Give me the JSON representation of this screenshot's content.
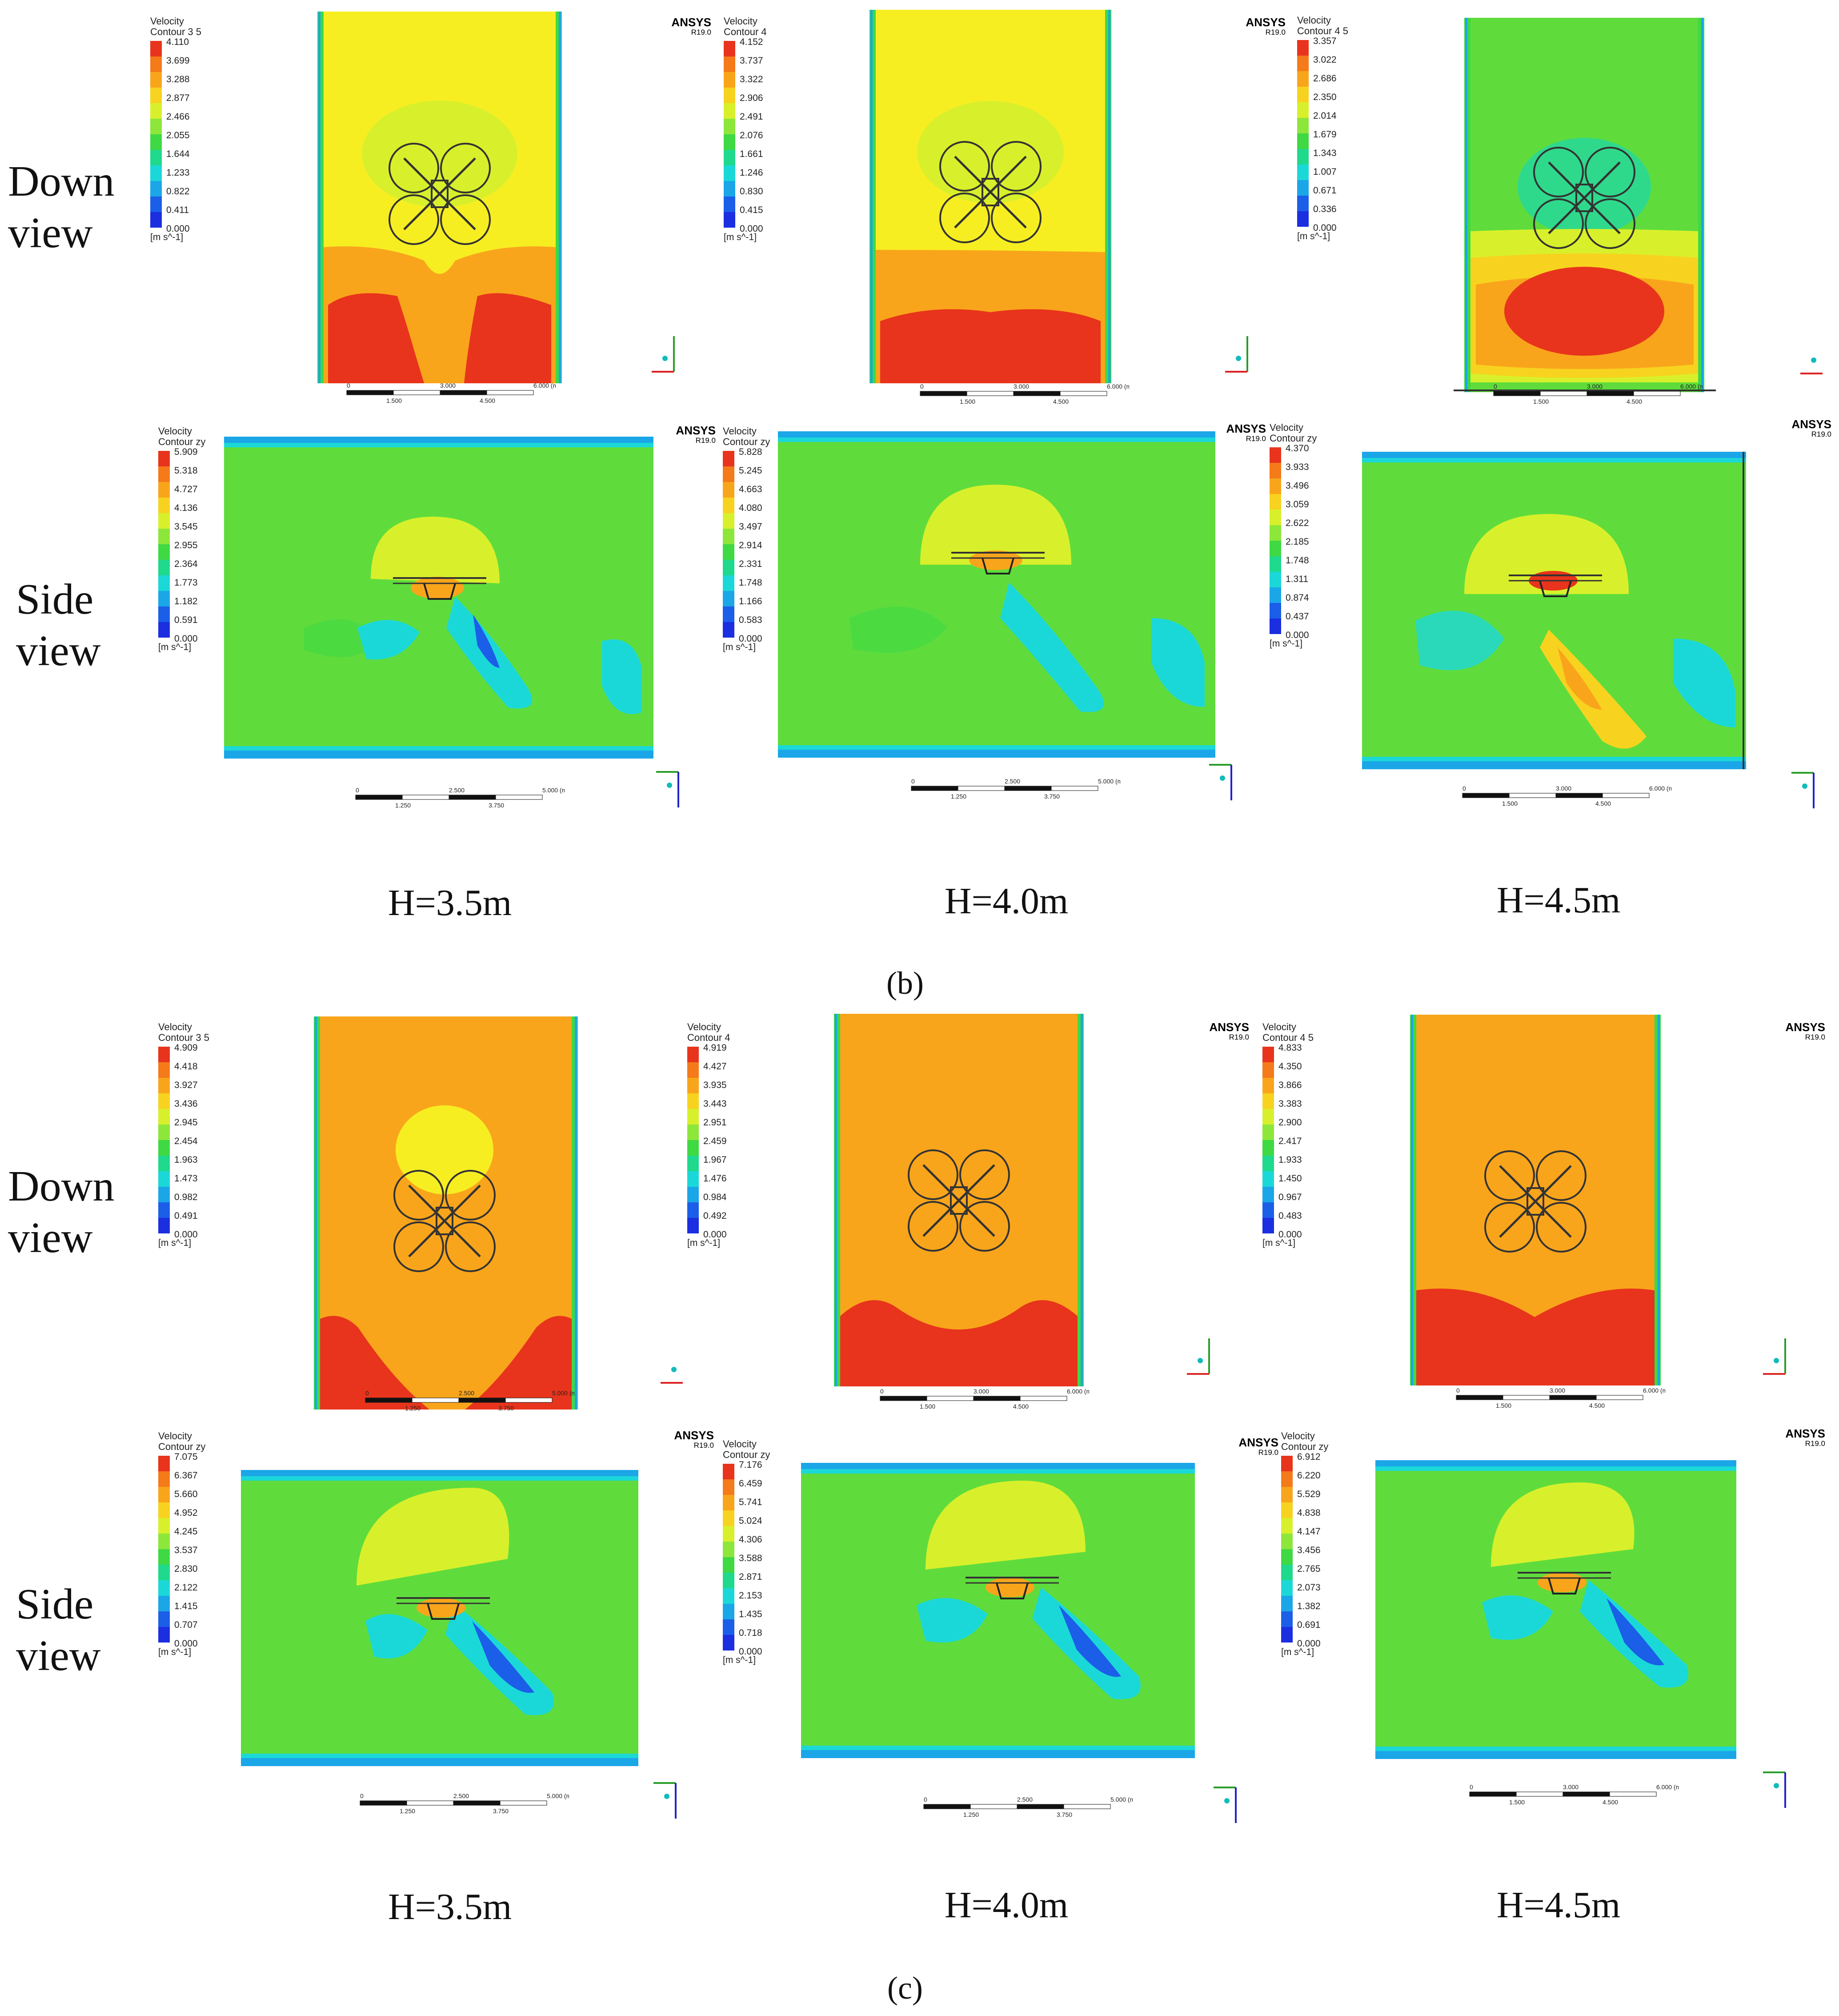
{
  "row_labels": {
    "down_1": "Down",
    "down_2": "view",
    "side_1": "Side",
    "side_2": "view"
  },
  "ansys": {
    "brand": "ANSYS",
    "version": "R19.0"
  },
  "legend_unit": "[m s^-1]",
  "heights": [
    "H=3.5m",
    "H=4.0m",
    "H=4.5m"
  ],
  "sublabels": {
    "b": "(b)",
    "c": "(c)"
  },
  "legend_colors": [
    "#e8341c",
    "#f47a1a",
    "#f9a51b",
    "#f7d31f",
    "#d8f02b",
    "#8de63a",
    "#3fd944",
    "#1fd98c",
    "#1bd8d8",
    "#1ba6e8",
    "#1b5ee8",
    "#1b2ee0"
  ],
  "scale": {
    "down_ticks_top": [
      "0",
      "3.000",
      "6.000 (m)"
    ],
    "down_ticks_bottom": [
      "1.500",
      "4.500"
    ],
    "side_ticks_top": [
      "0",
      "2.500",
      "5.000 (m)"
    ],
    "side_ticks_bottom": [
      "1.250",
      "3.750"
    ],
    "side45_ticks_top": [
      "0",
      "3.000",
      "6.000 (m)"
    ],
    "side45_ticks_bottom": [
      "1.500",
      "4.500"
    ]
  },
  "legends": {
    "b_down_35": {
      "title1": "Velocity",
      "title2": "Contour 3 5",
      "values": [
        "4.110",
        "3.699",
        "3.288",
        "2.877",
        "2.466",
        "2.055",
        "1.644",
        "1.233",
        "0.822",
        "0.411",
        "0.000"
      ]
    },
    "b_down_40": {
      "title1": "Velocity",
      "title2": "Contour 4",
      "values": [
        "4.152",
        "3.737",
        "3.322",
        "2.906",
        "2.491",
        "2.076",
        "1.661",
        "1.246",
        "0.830",
        "0.415",
        "0.000"
      ]
    },
    "b_down_45": {
      "title1": "Velocity",
      "title2": "Contour 4 5",
      "values": [
        "3.357",
        "3.022",
        "2.686",
        "2.350",
        "2.014",
        "1.679",
        "1.343",
        "1.007",
        "0.671",
        "0.336",
        "0.000"
      ]
    },
    "b_side_35": {
      "title1": "Velocity",
      "title2": "Contour zy",
      "values": [
        "5.909",
        "5.318",
        "4.727",
        "4.136",
        "3.545",
        "2.955",
        "2.364",
        "1.773",
        "1.182",
        "0.591",
        "0.000"
      ]
    },
    "b_side_40": {
      "title1": "Velocity",
      "title2": "Contour zy",
      "values": [
        "5.828",
        "5.245",
        "4.663",
        "4.080",
        "3.497",
        "2.914",
        "2.331",
        "1.748",
        "1.166",
        "0.583",
        "0.000"
      ]
    },
    "b_side_45": {
      "title1": "Velocity",
      "title2": "Contour zy",
      "values": [
        "4.370",
        "3.933",
        "3.496",
        "3.059",
        "2.622",
        "2.185",
        "1.748",
        "1.311",
        "0.874",
        "0.437",
        "0.000"
      ]
    },
    "c_down_35": {
      "title1": "Velocity",
      "title2": "Contour 3 5",
      "values": [
        "4.909",
        "4.418",
        "3.927",
        "3.436",
        "2.945",
        "2.454",
        "1.963",
        "1.473",
        "0.982",
        "0.491",
        "0.000"
      ]
    },
    "c_down_40": {
      "title1": "Velocity",
      "title2": "Contour 4",
      "values": [
        "4.919",
        "4.427",
        "3.935",
        "3.443",
        "2.951",
        "2.459",
        "1.967",
        "1.476",
        "0.984",
        "0.492",
        "0.000"
      ]
    },
    "c_down_45": {
      "title1": "Velocity",
      "title2": "Contour 4 5",
      "values": [
        "4.833",
        "4.350",
        "3.866",
        "3.383",
        "2.900",
        "2.417",
        "1.933",
        "1.450",
        "0.967",
        "0.483",
        "0.000"
      ]
    },
    "c_side_35": {
      "title1": "Velocity",
      "title2": "Contour zy",
      "values": [
        "7.075",
        "6.367",
        "5.660",
        "4.952",
        "4.245",
        "3.537",
        "2.830",
        "2.122",
        "1.415",
        "0.707",
        "0.000"
      ]
    },
    "c_side_40": {
      "title1": "Velocity",
      "title2": "Contour zy",
      "values": [
        "7.176",
        "6.459",
        "5.741",
        "5.024",
        "4.306",
        "3.588",
        "2.871",
        "2.153",
        "1.435",
        "0.718",
        "0.000"
      ]
    },
    "c_side_45": {
      "title1": "Velocity",
      "title2": "Contour zy",
      "values": [
        "6.912",
        "6.220",
        "5.529",
        "4.838",
        "4.147",
        "3.456",
        "2.765",
        "2.073",
        "1.382",
        "0.691",
        "0.000"
      ]
    }
  }
}
